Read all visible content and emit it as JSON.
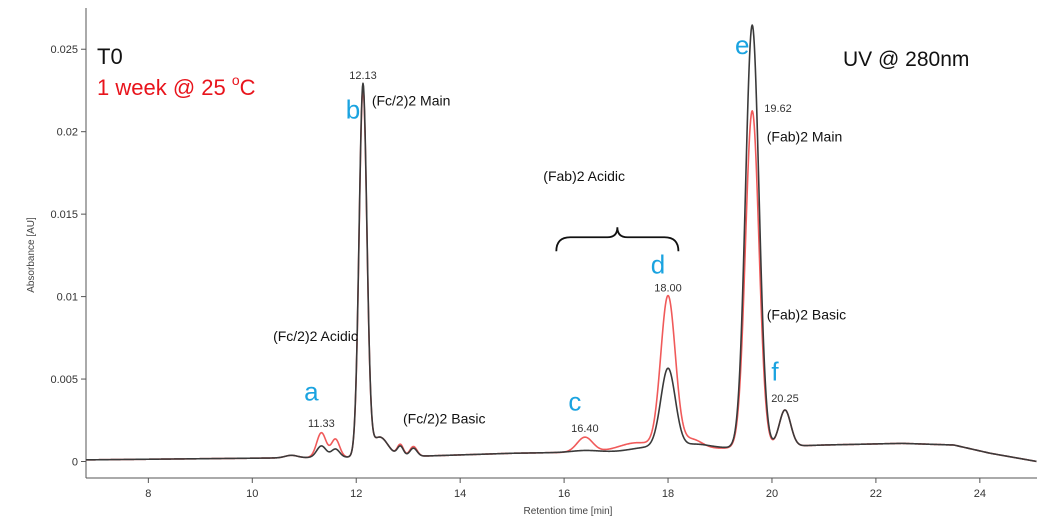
{
  "chart_data": {
    "type": "line",
    "xlabel": "Retention time [min]",
    "ylabel": "Absorbance [AU]",
    "xlim": [
      6.8,
      25.1
    ],
    "ylim": [
      -0.001,
      0.0275
    ],
    "x_ticks": [
      8,
      10,
      12,
      14,
      16,
      18,
      20,
      22,
      24
    ],
    "x_tick_labels": [
      "8",
      "10",
      "12",
      "14",
      "16",
      "18",
      "20",
      "22",
      "24"
    ],
    "y_ticks": [
      0,
      0.005,
      0.01,
      0.015,
      0.02,
      0.025
    ],
    "y_tick_labels": [
      "0",
      "0.005",
      "0.01",
      "0.015",
      "0.02",
      "0.025"
    ],
    "grid": false,
    "legend": {
      "placement": "top-left",
      "entries": [
        {
          "text_main": "T0",
          "text_sup": "",
          "text_tail": "",
          "color": "#3a3a3a"
        },
        {
          "text_main": "1 week @ 25 ",
          "text_sup": "o",
          "text_tail": "C",
          "color": "#e8141c"
        }
      ]
    },
    "annotation_uv": "UV @ 280nm",
    "baseline": [
      [
        6.8,
        0.0001
      ],
      [
        10,
        0.0002
      ],
      [
        13,
        0.0003
      ],
      [
        15,
        0.0005
      ],
      [
        17,
        0.0006
      ],
      [
        19,
        0.0008
      ],
      [
        21,
        0.001
      ],
      [
        22.5,
        0.0011
      ],
      [
        23.5,
        0.001
      ],
      [
        24.2,
        0.0005
      ],
      [
        25.1,
        0.0
      ]
    ],
    "series": [
      {
        "name": "T0",
        "color": "#3a3a3a",
        "peaks": [
          {
            "rt": 10.75,
            "height": 0.00015,
            "width": 0.12
          },
          {
            "rt": 11.33,
            "height": 0.0007,
            "width": 0.09
          },
          {
            "rt": 11.6,
            "height": 0.0005,
            "width": 0.08
          },
          {
            "rt": 12.13,
            "height": 0.0225,
            "width": 0.075
          },
          {
            "rt": 12.45,
            "height": 0.0012,
            "width": 0.16
          },
          {
            "rt": 12.85,
            "height": 0.0006,
            "width": 0.06
          },
          {
            "rt": 13.1,
            "height": 0.0005,
            "width": 0.07
          },
          {
            "rt": 16.4,
            "height": 0.0001,
            "width": 0.25
          },
          {
            "rt": 17.6,
            "height": 0.0002,
            "width": 0.3
          },
          {
            "rt": 18.0,
            "height": 0.0048,
            "width": 0.14
          },
          {
            "rt": 18.5,
            "height": 0.0003,
            "width": 0.3
          },
          {
            "rt": 19.62,
            "height": 0.0256,
            "width": 0.13
          },
          {
            "rt": 20.25,
            "height": 0.0022,
            "width": 0.11
          }
        ]
      },
      {
        "name": "1 week @ 25 °C",
        "color": "#f05a5a",
        "peaks": [
          {
            "rt": 10.75,
            "height": 0.00015,
            "width": 0.12
          },
          {
            "rt": 11.33,
            "height": 0.0015,
            "width": 0.09
          },
          {
            "rt": 11.6,
            "height": 0.0011,
            "width": 0.08
          },
          {
            "rt": 12.13,
            "height": 0.0222,
            "width": 0.075
          },
          {
            "rt": 12.45,
            "height": 0.0012,
            "width": 0.16
          },
          {
            "rt": 12.85,
            "height": 0.0007,
            "width": 0.06
          },
          {
            "rt": 13.1,
            "height": 0.0006,
            "width": 0.07
          },
          {
            "rt": 16.4,
            "height": 0.0009,
            "width": 0.15
          },
          {
            "rt": 17.4,
            "height": 0.0005,
            "width": 0.35
          },
          {
            "rt": 18.0,
            "height": 0.0092,
            "width": 0.14
          },
          {
            "rt": 18.45,
            "height": 0.0006,
            "width": 0.2
          },
          {
            "rt": 19.62,
            "height": 0.0204,
            "width": 0.13
          },
          {
            "rt": 20.25,
            "height": 0.0022,
            "width": 0.11
          }
        ]
      }
    ],
    "peak_labels": [
      {
        "letter": "a",
        "rt_text": "11.33",
        "rt": 11.33,
        "letter_y": 0.0037,
        "rt_y": 0.0021
      },
      {
        "letter": "b",
        "rt_text": "12.13",
        "rt": 12.13,
        "letter_y": 0.0208,
        "rt_y": 0.0232
      },
      {
        "letter": "c",
        "rt_text": "16.40",
        "rt": 16.4,
        "letter_y": 0.0031,
        "rt_y": 0.0018
      },
      {
        "letter": "d",
        "rt_text": "18.00",
        "rt": 18.0,
        "letter_y": 0.0114,
        "rt_y": 0.0103
      },
      {
        "letter": "e",
        "rt_text": "19.62",
        "rt": 19.62,
        "letter_y": 0.0247,
        "rt_y": 0.0212
      },
      {
        "letter": "f",
        "rt_text": "20.25",
        "rt": 20.25,
        "letter_y": 0.0049,
        "rt_y": 0.0036
      }
    ],
    "region_labels": [
      {
        "text": "(Fc/2)2 Acidic",
        "x": 10.4,
        "y": 0.0073
      },
      {
        "text": "(Fc/2)2 Main",
        "x": 12.3,
        "y": 0.0216
      },
      {
        "text": "(Fc/2)2 Basic",
        "x": 12.9,
        "y": 0.0023
      },
      {
        "text": "(Fab)2 Acidic",
        "x": 15.6,
        "y": 0.017
      },
      {
        "text": "(Fab)2 Main",
        "x": 19.9,
        "y": 0.0194
      },
      {
        "text": "(Fab)2 Basic",
        "x": 19.9,
        "y": 0.0086
      }
    ],
    "brace": {
      "x_start": 15.85,
      "x_end": 18.2,
      "y": 0.0136
    }
  }
}
